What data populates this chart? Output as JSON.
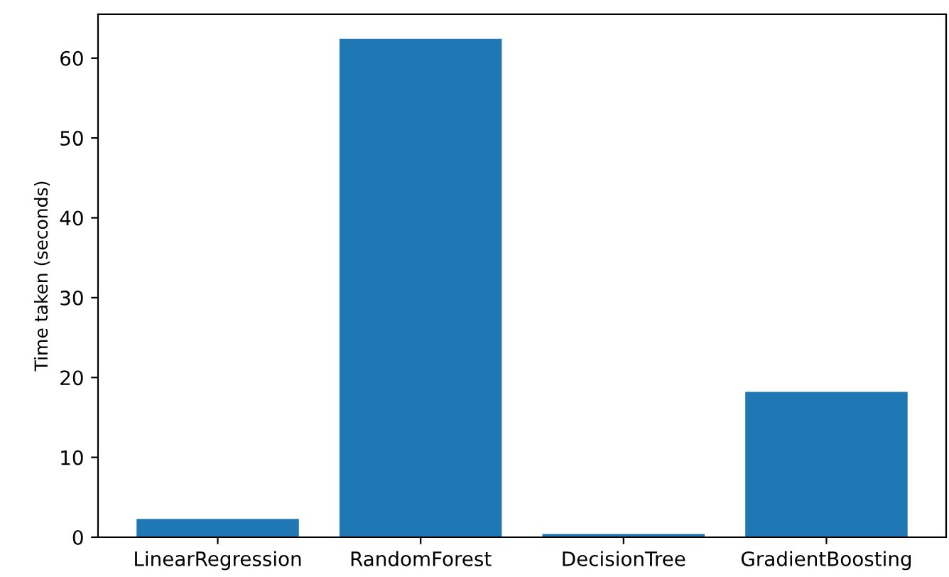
{
  "chart_data": {
    "type": "bar",
    "ylabel": "Time taken (seconds)",
    "categories": [
      "LinearRegression",
      "RandomForest",
      "DecisionTree",
      "GradientBoosting"
    ],
    "values": [
      2.3,
      62.4,
      0.4,
      18.2
    ],
    "color": "#1f77b4",
    "ylim": [
      0,
      65.5
    ],
    "yticks": [
      0,
      10,
      20,
      30,
      40,
      50,
      60
    ],
    "grid": false
  }
}
